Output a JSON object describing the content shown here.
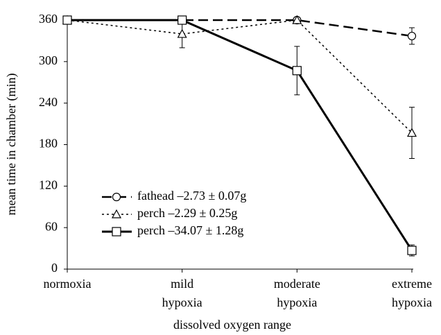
{
  "chart_data": {
    "type": "line",
    "categories": [
      [
        "normoxia"
      ],
      [
        "mild",
        "hypoxia"
      ],
      [
        "moderate",
        "hypoxia"
      ],
      [
        "extreme",
        "hypoxia"
      ]
    ],
    "x_label": "dissolved oxygen range",
    "y_label": "mean time in chamber (min)",
    "ylim": [
      0,
      360
    ],
    "yticks": [
      0,
      60,
      120,
      180,
      240,
      300,
      360
    ],
    "series": [
      {
        "name": "fathead –2.73 ± 0.07g",
        "color": "#000000",
        "marker": "circle",
        "dash": "14,7",
        "width": 2.5,
        "values": [
          360,
          360,
          360,
          337
        ],
        "errors": [
          0,
          0,
          0,
          12
        ]
      },
      {
        "name": "perch –2.29 ± 0.25g",
        "color": "#000000",
        "marker": "triangle",
        "dash": "3,4",
        "width": 1.5,
        "values": [
          360,
          340,
          360,
          197
        ],
        "errors": [
          0,
          20,
          0,
          37
        ]
      },
      {
        "name": "perch –34.07 ± 1.28g",
        "color": "#000000",
        "marker": "square",
        "dash": "none",
        "width": 3,
        "values": [
          360,
          360,
          287,
          27
        ],
        "errors": [
          0,
          0,
          35,
          8
        ]
      }
    ]
  }
}
